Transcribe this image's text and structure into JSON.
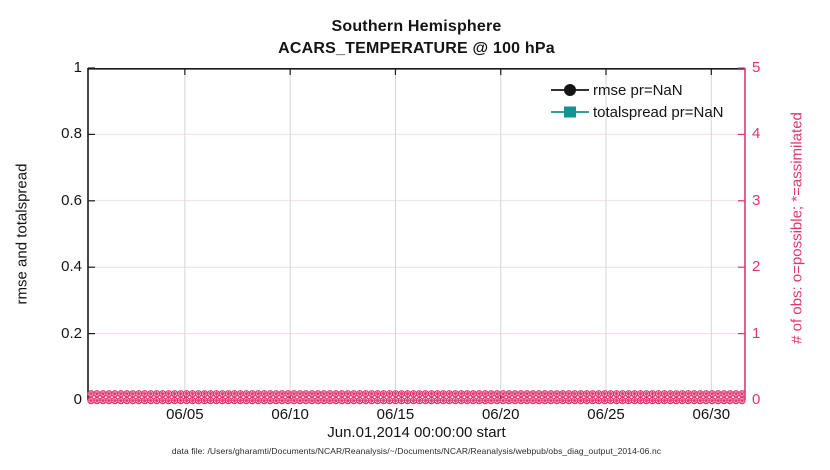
{
  "figure": {
    "title_line1": "Southern Hemisphere",
    "title_line2": "ACARS_TEMPERATURE @ 100 hPa",
    "xlabel": "Jun.01,2014 00:00:00 start",
    "ylabel_left": "rmse and totalspread",
    "ylabel_right": "# of obs: o=possible; *=assimilated",
    "caption": "data file: /Users/gharamti/Documents/NCAR/Reanalysis/~/Documents/NCAR/Reanalysis/webpub/obs_diag_output_2014-06.nc"
  },
  "legend": {
    "entries": [
      {
        "label": "rmse pr=NaN",
        "marker": "circle",
        "color": "#141414"
      },
      {
        "label": "totalspread pr=NaN",
        "marker": "square",
        "color": "#149191"
      }
    ]
  },
  "colors": {
    "axis_black": "#1a1a1a",
    "text_black": "#141414",
    "obs_pink": "#e23470",
    "grid_pink": "#f9d9e6",
    "grid_gray": "#d5d5d5",
    "teal": "#149191",
    "background": "#ffffff"
  },
  "chart_data": {
    "type": "line",
    "title": "Southern Hemisphere — ACARS_TEMPERATURE @ 100 hPa",
    "x_axis": {
      "label": "Jun.01,2014 00:00:00 start",
      "tick_labels": [
        "06/05",
        "06/10",
        "06/15",
        "06/20",
        "06/25",
        "06/30"
      ],
      "tick_days": [
        4,
        9,
        14,
        19,
        24,
        29
      ],
      "range_days_from_jun01": [
        -0.6,
        30.6
      ],
      "grid": true
    },
    "y_axis_left": {
      "label": "rmse and totalspread",
      "ticks": [
        0,
        0.2,
        0.4,
        0.6,
        0.8,
        1
      ],
      "range": [
        0,
        1
      ],
      "grid": true
    },
    "y_axis_right": {
      "label": "# of obs: o=possible; *=assimilated",
      "ticks": [
        0,
        1,
        2,
        3,
        4,
        5
      ],
      "range": [
        0,
        5
      ]
    },
    "series": [
      {
        "name": "rmse pr=NaN",
        "values": "NaN",
        "plotted_points": 0
      },
      {
        "name": "totalspread pr=NaN",
        "values": "NaN",
        "plotted_points": 0
      }
    ],
    "obs_counts": {
      "possible_value": 0,
      "assimilated_value": 0,
      "note": "o (possible) and * (assimilated) markers all equal 0 across the whole month, forming a dense pink band on the zero line",
      "marker_rows": 2,
      "markers_per_row": 110
    },
    "legend_position": "upper right, no box"
  }
}
